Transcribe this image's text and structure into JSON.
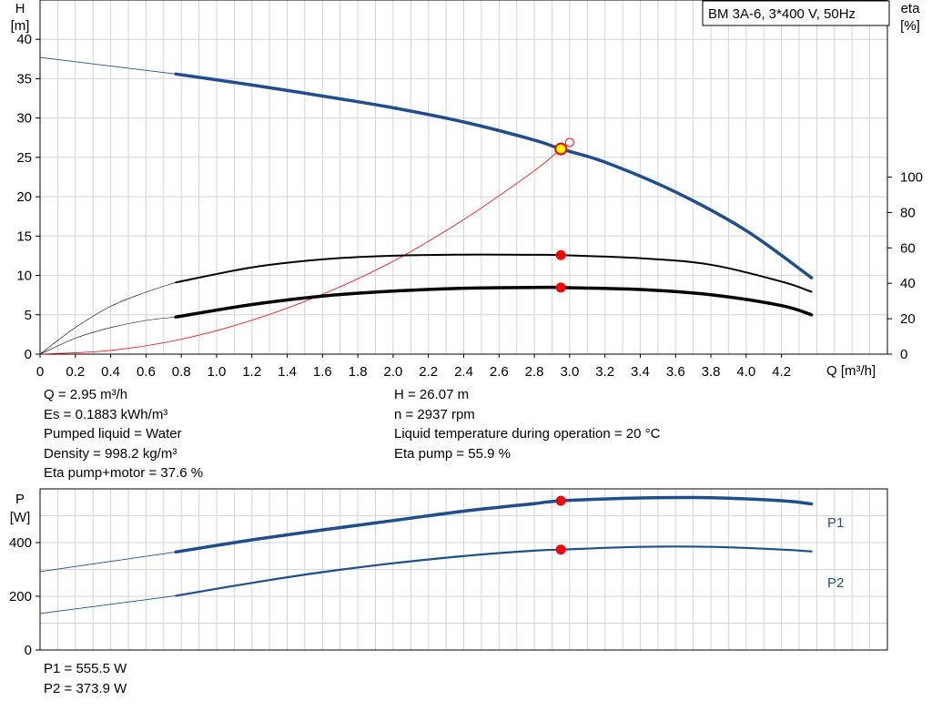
{
  "chart_data": [
    {
      "type": "line",
      "title": "BM 3A-6, 3*400 V, 50Hz",
      "xlabel": "Q [m³/h]",
      "ylabel_left": [
        "H",
        "[m]"
      ],
      "ylabel_right": [
        "eta",
        "[%]"
      ],
      "xlim": [
        0,
        4.8
      ],
      "ylim_left": [
        0,
        45
      ],
      "ylim_right": [
        0,
        200
      ],
      "grid": true,
      "x_ticks": [
        "0",
        "0.2",
        "0.4",
        "0.6",
        "0.8",
        "1.0",
        "1.2",
        "1.4",
        "1.6",
        "1.8",
        "2.0",
        "2.2",
        "2.4",
        "2.6",
        "2.8",
        "3.0",
        "3.2",
        "3.4",
        "3.6",
        "3.8",
        "4.0",
        "4.2"
      ],
      "y_ticks_left": [
        "0",
        "5",
        "10",
        "15",
        "20",
        "25",
        "30",
        "35",
        "40"
      ],
      "y_ticks_right": [
        "0",
        "20",
        "40",
        "60",
        "80",
        "100"
      ],
      "series": [
        {
          "key": "H",
          "color": "#1f4e8c",
          "x": [
            0,
            0.77,
            1.2,
            1.6,
            2.0,
            2.4,
            2.8,
            2.95,
            3.2,
            3.6,
            4.0,
            4.37
          ],
          "y": [
            37.7,
            35.6,
            34.2,
            32.8,
            31.3,
            29.5,
            27.2,
            26.07,
            24.4,
            20.6,
            15.7,
            9.7
          ]
        },
        {
          "key": "eta_pump_motor",
          "color": "#000000",
          "x": [
            0,
            0.2,
            0.4,
            0.6,
            0.77,
            1.2,
            1.6,
            2.0,
            2.4,
            2.8,
            2.95,
            3.4,
            3.8,
            4.2,
            4.37
          ],
          "y": [
            0,
            9,
            15,
            19,
            21,
            28,
            32.8,
            35.6,
            37.2,
            37.7,
            37.6,
            36.5,
            33.5,
            27.4,
            22.2
          ]
        },
        {
          "key": "eta_pump",
          "color": "#000000",
          "x": [
            0,
            0.2,
            0.4,
            0.6,
            0.77,
            1.2,
            1.6,
            2.0,
            2.4,
            2.8,
            2.95,
            3.4,
            3.8,
            4.2,
            4.37
          ],
          "y": [
            0,
            15,
            27,
            35,
            40.5,
            49,
            53.5,
            55.6,
            56.2,
            56.1,
            55.9,
            54.2,
            50.5,
            41,
            35.2
          ]
        },
        {
          "key": "system_curve",
          "color": "#ff0000",
          "x": [
            0,
            0.4,
            0.8,
            1.2,
            1.6,
            2.0,
            2.4,
            2.8,
            2.95,
            3.0
          ],
          "y": [
            0,
            0.47,
            1.9,
            4.3,
            7.6,
            11.8,
            17.1,
            23.3,
            26.07,
            26.9
          ]
        }
      ],
      "operating_point": {
        "x": 2.95,
        "H": 26.07,
        "eta_pump": 55.9,
        "eta_pump_motor": 37.6
      }
    },
    {
      "type": "line",
      "xlabel": "",
      "ylabel": [
        "P",
        "[W]"
      ],
      "xlim": [
        0,
        4.8
      ],
      "ylim": [
        0,
        600
      ],
      "grid": true,
      "y_ticks": [
        "0",
        "200",
        "400"
      ],
      "series": [
        {
          "name": "P1",
          "color": "#1f4e8c",
          "x": [
            0,
            0.77,
            1.2,
            1.6,
            2.0,
            2.4,
            2.8,
            2.95,
            3.4,
            3.8,
            4.2,
            4.37
          ],
          "y": [
            292,
            365,
            410,
            447,
            482,
            517,
            545,
            555.5,
            566,
            567,
            556,
            544
          ]
        },
        {
          "name": "P2",
          "color": "#1f4e8c",
          "x": [
            0,
            0.77,
            1.2,
            1.6,
            2.0,
            2.4,
            2.8,
            2.95,
            3.4,
            3.8,
            4.2,
            4.37
          ],
          "y": [
            136,
            202,
            250,
            290,
            323,
            350,
            370,
            373.9,
            384,
            384,
            374,
            367
          ]
        }
      ],
      "operating_point": {
        "x": 2.95,
        "P1": 555.5,
        "P2": 373.9
      }
    }
  ],
  "readout": {
    "left": [
      "Q = 2.95 m³/h",
      "Es = 0.1883 kWh/m³",
      "Pumped liquid = Water",
      "Density = 998.2 kg/m³",
      "Eta pump+motor = 37.6 %"
    ],
    "right": [
      "H = 26.07 m",
      "n = 2937 rpm",
      "Liquid temperature during operation = 20 °C",
      "Eta pump = 55.9 %"
    ],
    "power": [
      "P1 = 555.5 W",
      "P2 = 373.9 W"
    ]
  },
  "colors": {
    "curve_blue": "#1f4e8c",
    "system_red": "#ff0000",
    "duty_point": "#ff0000",
    "duty_point_highlight": "#ffff00",
    "grid": "#d4d4d4"
  }
}
